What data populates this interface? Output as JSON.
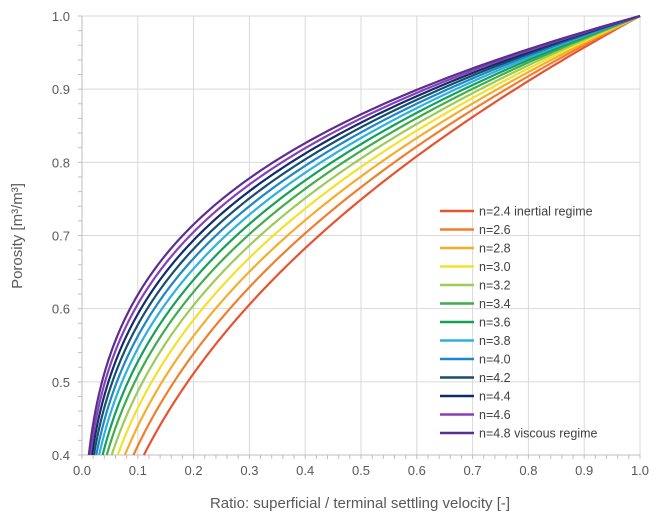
{
  "chart_data": {
    "type": "line",
    "title": "",
    "xlabel": "Ratio: superficial / terminal settling velocity [-]",
    "ylabel": "Porosity [m³/m³]",
    "xlim": [
      0.0,
      1.0
    ],
    "ylim": [
      0.4,
      1.0
    ],
    "x_ticks": [
      "0.0",
      "0.1",
      "0.2",
      "0.3",
      "0.4",
      "0.5",
      "0.6",
      "0.7",
      "0.8",
      "0.9",
      "1.0"
    ],
    "y_ticks": [
      "0.4",
      "0.5",
      "0.6",
      "0.7",
      "0.8",
      "0.9",
      "1.0"
    ],
    "grid": true,
    "legend_position": "right",
    "relation": "ratio = porosity^n",
    "porosity": [
      0.4,
      0.42,
      0.44,
      0.46,
      0.48,
      0.5,
      0.55,
      0.6,
      0.65,
      0.7,
      0.75,
      0.8,
      0.85,
      0.9,
      0.95,
      1.0
    ],
    "series": [
      {
        "name": "n=2.4 inertial regime",
        "n": 2.4,
        "color": "#e8522f"
      },
      {
        "name": "n=2.6",
        "n": 2.6,
        "color": "#f07e2e"
      },
      {
        "name": "n=2.8",
        "n": 2.8,
        "color": "#f5ae2c"
      },
      {
        "name": "n=3.0",
        "n": 3.0,
        "color": "#f2e22c"
      },
      {
        "name": "n=3.2",
        "n": 3.2,
        "color": "#9ccc55"
      },
      {
        "name": "n=3.4",
        "n": 3.4,
        "color": "#3fae4a"
      },
      {
        "name": "n=3.6",
        "n": 3.6,
        "color": "#15a05a"
      },
      {
        "name": "n=3.8",
        "n": 3.8,
        "color": "#2fb0e0"
      },
      {
        "name": "n=4.0",
        "n": 4.0,
        "color": "#1c87c9"
      },
      {
        "name": "n=4.2",
        "n": 4.2,
        "color": "#1b4e6b"
      },
      {
        "name": "n=4.4",
        "n": 4.4,
        "color": "#0f2d6b"
      },
      {
        "name": "n=4.6",
        "n": 4.6,
        "color": "#8a3fb8"
      },
      {
        "name": "n=4.8 viscous regime",
        "n": 4.8,
        "color": "#5a2f8f"
      }
    ]
  }
}
